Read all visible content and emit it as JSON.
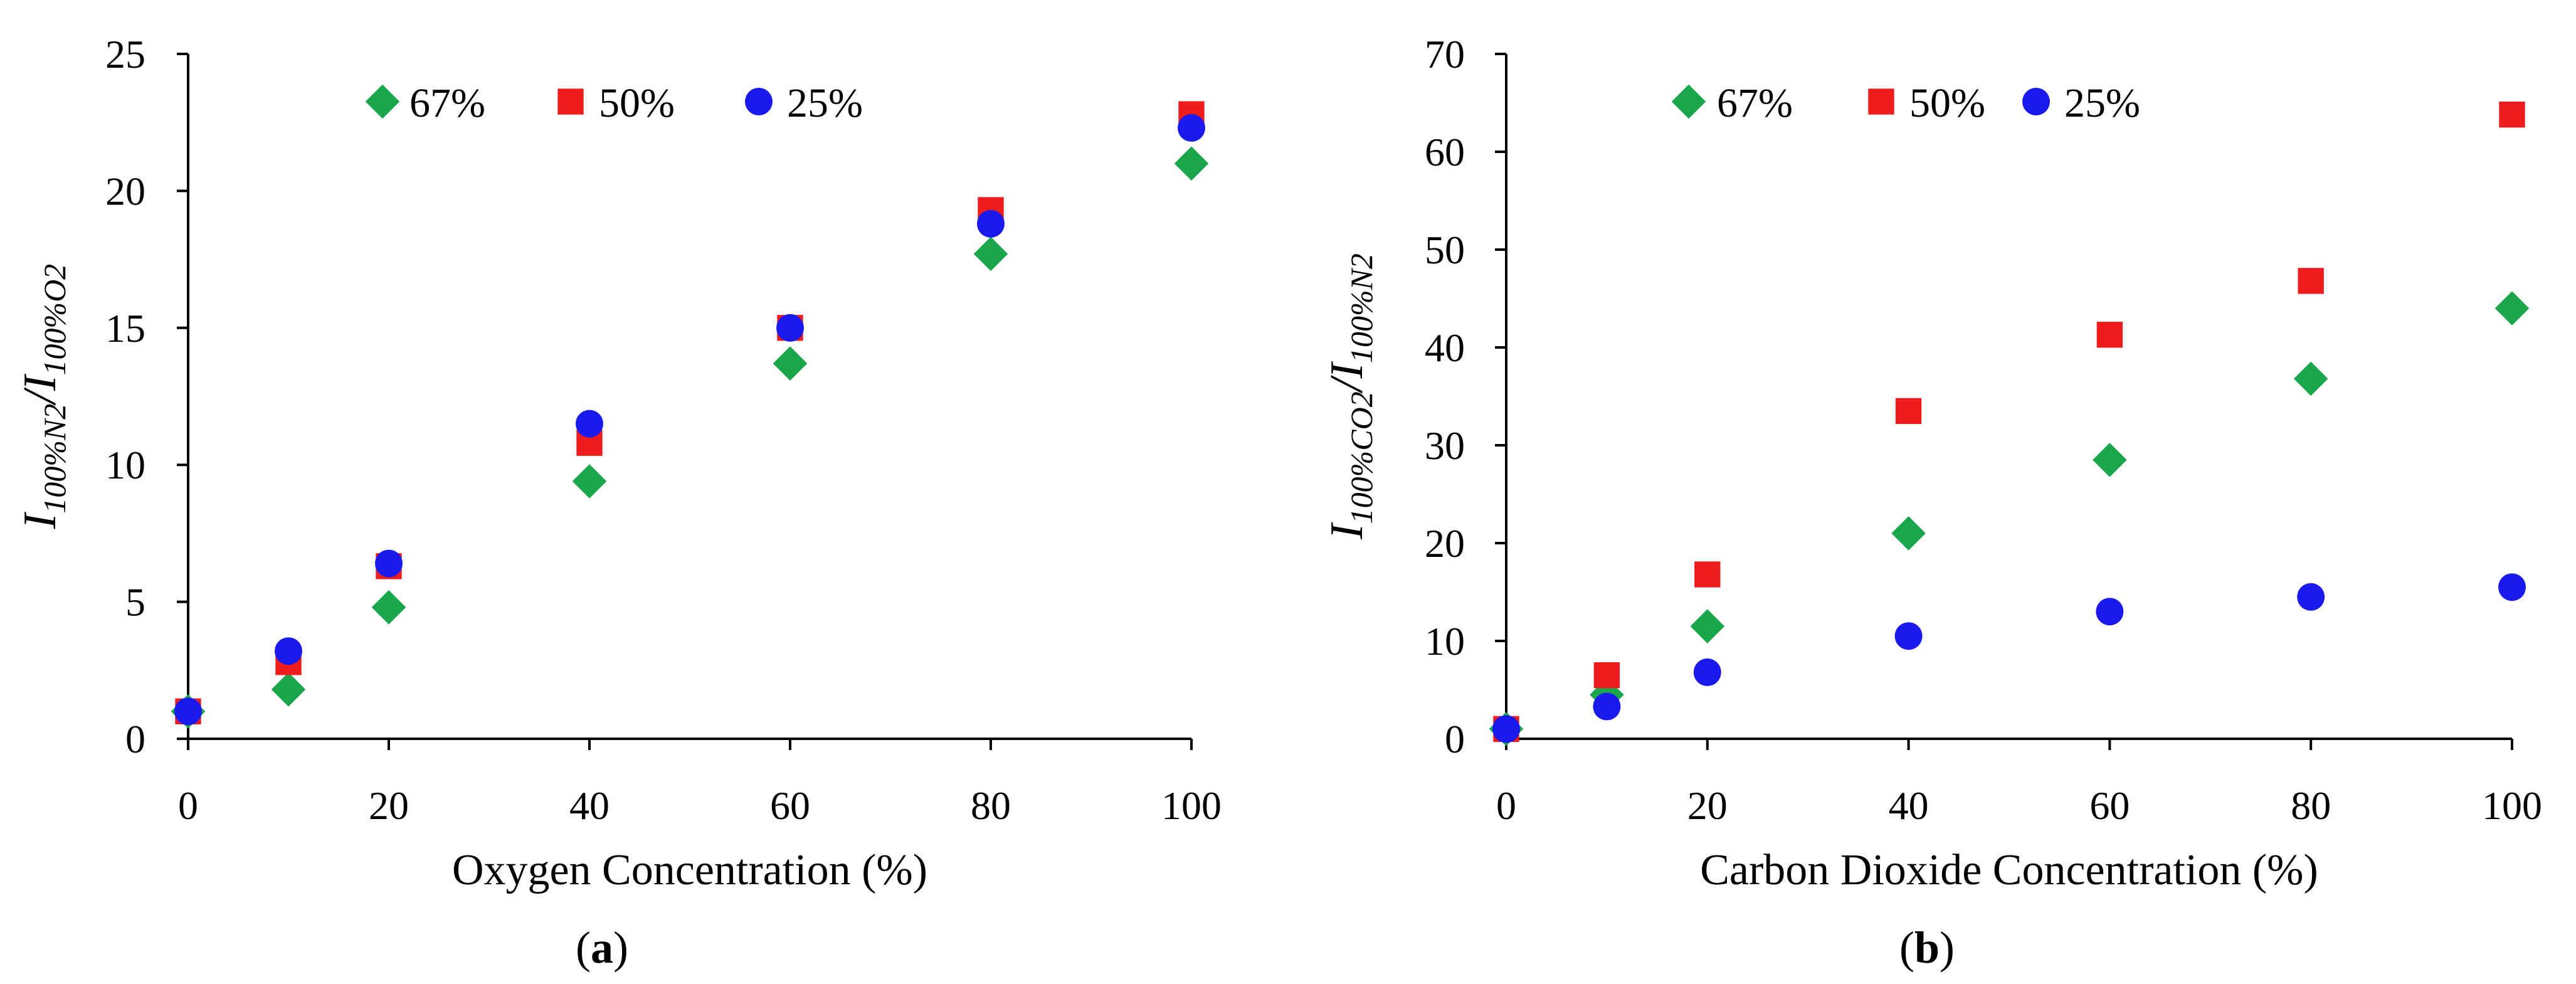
{
  "chart_data": [
    {
      "type": "scatter",
      "panel": "a",
      "caption": "(a)",
      "caption_letter": "a",
      "xlabel": "Oxygen Concentration (%)",
      "ylabel_main": "I",
      "ylabel_sub1": "100%N2",
      "ylabel_slash": "/",
      "ylabel_sub2": "100%O2",
      "xlim": [
        0,
        100
      ],
      "ylim": [
        0,
        25
      ],
      "xticks": [
        0,
        20,
        40,
        60,
        80,
        100
      ],
      "yticks": [
        0,
        5,
        10,
        15,
        20,
        25
      ],
      "grid": false,
      "legend_position": "top",
      "x": [
        0,
        10,
        20,
        40,
        60,
        80,
        100
      ],
      "series": [
        {
          "name": "67%",
          "marker": "diamond",
          "color": "#1aa64a",
          "values": [
            1.0,
            1.8,
            4.8,
            9.4,
            13.7,
            17.7,
            21.0
          ]
        },
        {
          "name": "50%",
          "marker": "square",
          "color": "#ee1c1c",
          "values": [
            1.0,
            2.8,
            6.3,
            10.8,
            15.0,
            19.3,
            22.8
          ]
        },
        {
          "name": "25%",
          "marker": "circle",
          "color": "#1a1aee",
          "values": [
            1.0,
            3.2,
            6.4,
            11.5,
            15.0,
            18.8,
            22.3
          ]
        }
      ]
    },
    {
      "type": "scatter",
      "panel": "b",
      "caption": "(b)",
      "caption_letter": "b",
      "xlabel": "Carbon Dioxide Concentration (%)",
      "ylabel_main": "I",
      "ylabel_sub1": "100%CO2",
      "ylabel_slash": "/",
      "ylabel_sub2": "100%N2",
      "xlim": [
        0,
        100
      ],
      "ylim": [
        0,
        70
      ],
      "xticks": [
        0,
        20,
        40,
        60,
        80,
        100
      ],
      "yticks": [
        0,
        10,
        20,
        30,
        40,
        50,
        60,
        70
      ],
      "grid": false,
      "legend_position": "top",
      "x": [
        0,
        10,
        20,
        40,
        60,
        80,
        100
      ],
      "series": [
        {
          "name": "67%",
          "marker": "diamond",
          "color": "#1aa64a",
          "values": [
            1.0,
            4.5,
            11.5,
            21.0,
            28.5,
            36.8,
            44.0
          ]
        },
        {
          "name": "50%",
          "marker": "square",
          "color": "#ee1c1c",
          "values": [
            1.0,
            6.5,
            16.8,
            33.5,
            41.3,
            46.8,
            63.8
          ]
        },
        {
          "name": "25%",
          "marker": "circle",
          "color": "#1a1aee",
          "values": [
            1.0,
            3.3,
            6.8,
            10.5,
            13.0,
            14.5,
            15.5
          ]
        }
      ]
    }
  ]
}
